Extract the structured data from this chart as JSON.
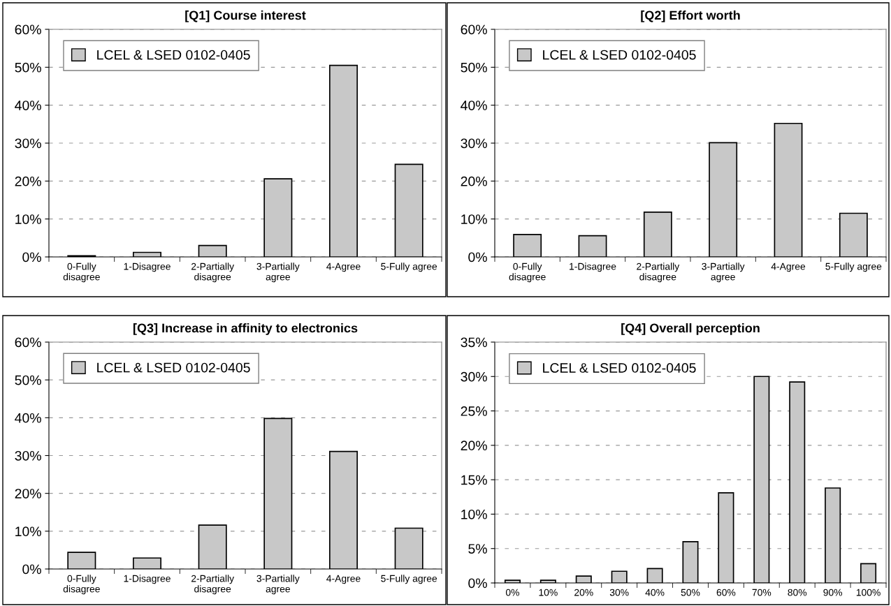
{
  "chart_data": [
    {
      "type": "bar",
      "title": "[Q1] Course interest",
      "categories": [
        "0-Fully\ndisagree",
        "1-Disagree",
        "2-Partially\ndisagree",
        "3-Partially\nagree",
        "4-Agree",
        "5-Fully agree"
      ],
      "series": [
        {
          "name": "LCEL & LSED 0102-0405",
          "color": "#c8c8c8",
          "values": [
            0.3,
            1.2,
            3.0,
            20.6,
            50.5,
            24.4
          ]
        }
      ],
      "ylim": [
        0,
        60
      ],
      "yticks": [
        {
          "value": 0,
          "label": "0%"
        },
        {
          "value": 10,
          "label": "10%"
        },
        {
          "value": 20,
          "label": "20%"
        },
        {
          "value": 30,
          "label": "30%"
        },
        {
          "value": 40,
          "label": "40%"
        },
        {
          "value": 50,
          "label": "50%"
        },
        {
          "value": 60,
          "label": "60%"
        }
      ],
      "grid": "y",
      "legend": "top left"
    },
    {
      "type": "bar",
      "title": "[Q2] Effort worth",
      "categories": [
        "0-Fully\ndisagree",
        "1-Disagree",
        "2-Partially\ndisagree",
        "3-Partially\nagree",
        "4-Agree",
        "5-Fully agree"
      ],
      "series": [
        {
          "name": "LCEL & LSED 0102-0405",
          "color": "#c8c8c8",
          "values": [
            5.9,
            5.6,
            11.8,
            30.1,
            35.2,
            11.5
          ]
        }
      ],
      "ylim": [
        0,
        60
      ],
      "yticks": [
        {
          "value": 0,
          "label": "0%"
        },
        {
          "value": 10,
          "label": "10%"
        },
        {
          "value": 20,
          "label": "20%"
        },
        {
          "value": 30,
          "label": "30%"
        },
        {
          "value": 40,
          "label": "40%"
        },
        {
          "value": 50,
          "label": "50%"
        },
        {
          "value": 60,
          "label": "60%"
        }
      ],
      "grid": "y",
      "legend": "top left"
    },
    {
      "type": "bar",
      "title": "[Q3] Increase in affinity to electronics",
      "categories": [
        "0-Fully\ndisagree",
        "1-Disagree",
        "2-Partially\ndisagree",
        "3-Partially\nagree",
        "4-Agree",
        "5-Fully agree"
      ],
      "series": [
        {
          "name": "LCEL & LSED 0102-0405",
          "color": "#c8c8c8",
          "values": [
            4.4,
            2.9,
            11.6,
            39.8,
            31.1,
            10.8
          ]
        }
      ],
      "ylim": [
        0,
        60
      ],
      "yticks": [
        {
          "value": 0,
          "label": "0%"
        },
        {
          "value": 10,
          "label": "10%"
        },
        {
          "value": 20,
          "label": "20%"
        },
        {
          "value": 30,
          "label": "30%"
        },
        {
          "value": 40,
          "label": "40%"
        },
        {
          "value": 50,
          "label": "50%"
        },
        {
          "value": 60,
          "label": "60%"
        }
      ],
      "grid": "y",
      "legend": "top left"
    },
    {
      "type": "bar",
      "title": "[Q4] Overall perception",
      "categories": [
        "0%",
        "10%",
        "20%",
        "30%",
        "40%",
        "50%",
        "60%",
        "70%",
        "80%",
        "90%",
        "100%"
      ],
      "series": [
        {
          "name": "LCEL & LSED 0102-0405",
          "color": "#c8c8c8",
          "values": [
            0.4,
            0.4,
            1.0,
            1.7,
            2.1,
            6.0,
            13.1,
            30.0,
            29.2,
            13.8,
            2.8
          ]
        }
      ],
      "ylim": [
        0,
        35
      ],
      "yticks": [
        {
          "value": 0,
          "label": "0%"
        },
        {
          "value": 5,
          "label": "5%"
        },
        {
          "value": 10,
          "label": "10%"
        },
        {
          "value": 15,
          "label": "15%"
        },
        {
          "value": 20,
          "label": "20%"
        },
        {
          "value": 25,
          "label": "25%"
        },
        {
          "value": 30,
          "label": "30%"
        },
        {
          "value": 35,
          "label": "35%"
        }
      ],
      "grid": "y",
      "legend": "top left"
    }
  ]
}
